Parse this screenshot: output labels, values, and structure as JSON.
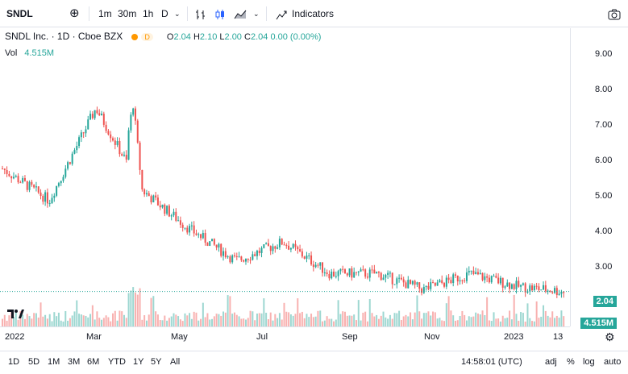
{
  "toolbar": {
    "symbol": "SNDL",
    "intervals": [
      "1m",
      "30m",
      "1h",
      "D"
    ],
    "active_interval": "D",
    "indicators_label": "Indicators"
  },
  "legend": {
    "title": "SNDL Inc. · 1D · Cboe BZX",
    "badge": "D",
    "o_label": "O",
    "o": "2.04",
    "h_label": "H",
    "h": "2.10",
    "l_label": "L",
    "l": "2.00",
    "c_label": "C",
    "c": "2.04",
    "change": "0.00 (0.00%)",
    "vol_label": "Vol",
    "vol": "4.515M"
  },
  "price_axis": {
    "ticks": [
      "9.00",
      "8.00",
      "7.00",
      "6.00",
      "5.00",
      "4.00",
      "3.00"
    ],
    "last_price": "2.04",
    "last_volume": "4.515M"
  },
  "time_axis": {
    "ticks": [
      "2022",
      "Mar",
      "May",
      "Jul",
      "Sep",
      "Nov",
      "2023",
      "13"
    ]
  },
  "bottom_bar": {
    "ranges": [
      "1D",
      "5D",
      "1M",
      "3M",
      "6M",
      "YTD",
      "1Y",
      "5Y",
      "All"
    ],
    "clock": "14:58:01 (UTC)",
    "toggles": [
      "adj",
      "%",
      "log",
      "auto"
    ]
  },
  "colors": {
    "up": "#26a69a",
    "down": "#ef5350",
    "accent": "#2962ff"
  },
  "chart_data": {
    "type": "candlestick",
    "x": [
      "Jan 2022",
      "Feb 2022",
      "Mar 2022",
      "Apr 2022",
      "May 2022",
      "Jun 2022",
      "Jul 2022",
      "Aug 2022",
      "Sep 2022",
      "Oct 2022",
      "Nov 2022",
      "Dec 2022",
      "Jan 2023"
    ],
    "close": [
      5.9,
      4.9,
      7.8,
      5.2,
      4.0,
      3.0,
      3.6,
      2.6,
      2.6,
      2.1,
      2.6,
      2.2,
      2.04
    ],
    "ylim": [
      1.7,
      9.5
    ],
    "last_close": 2.04,
    "last_volume": "4.515M"
  }
}
